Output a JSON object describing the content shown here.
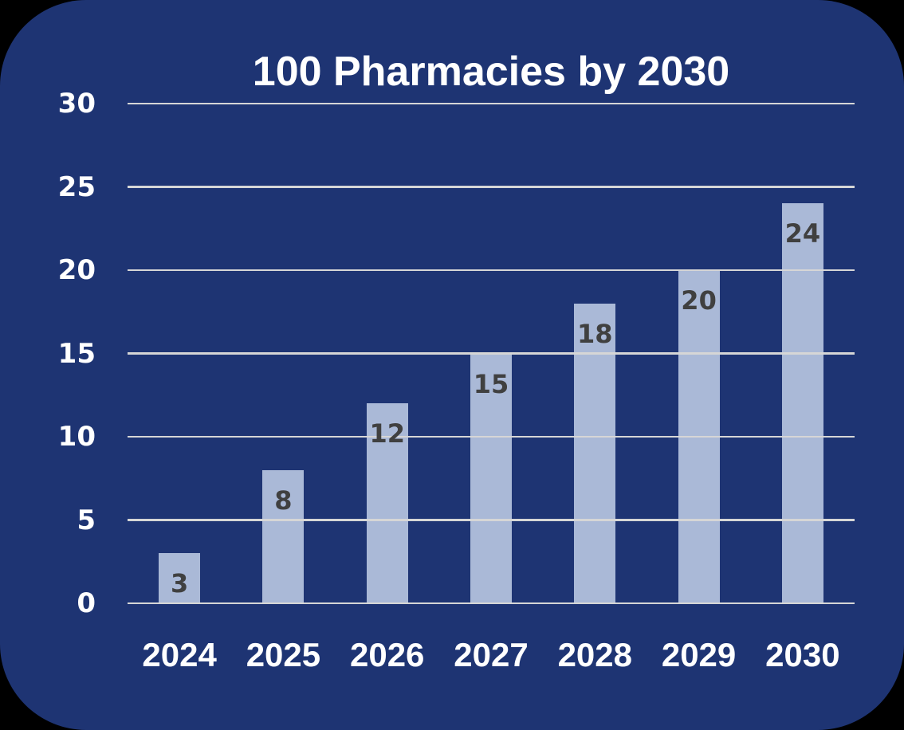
{
  "page": {
    "outer_background": "#000000",
    "card_background": "#1E3473"
  },
  "chart_data": {
    "type": "bar",
    "title": "100 Pharmacies by 2030",
    "categories": [
      "2024",
      "2025",
      "2026",
      "2027",
      "2028",
      "2029",
      "2030"
    ],
    "values": [
      3,
      8,
      12,
      15,
      18,
      20,
      24
    ],
    "y_ticks": [
      0,
      5,
      10,
      15,
      20,
      25,
      30
    ],
    "ylim": [
      0,
      30
    ],
    "xlabel": "",
    "ylabel": "",
    "grid": true,
    "legend": "none",
    "bar_color": "#AAB9D7",
    "gridline_color": "#D6D6D6",
    "value_label_color": "#404040",
    "axis_text_color": "#FFFFFF",
    "title_color": "#FFFFFF"
  }
}
